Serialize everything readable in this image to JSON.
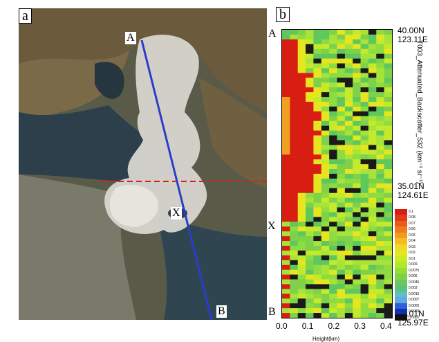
{
  "panel_a": {
    "label": "a",
    "point_a": "A",
    "point_b": "B",
    "point_x": "X"
  },
  "panel_b": {
    "label": "b",
    "side_a": "A",
    "side_x": "X",
    "side_b": "B",
    "top_lat": "40.00N",
    "top_lon": "123.11E",
    "mid_lat": "35.01N",
    "mid_lon": "124.61E",
    "bot_lat": "30.01N",
    "bot_lon": "125.97E",
    "y_title": "T003_Attenuated_Backscatter_532 (km⁻¹ sr⁻¹)",
    "x_title": "Height(km)",
    "x_ticks": [
      "0.0",
      "0.1",
      "0.2",
      "0.3",
      "0.4"
    ],
    "colorbar": [
      "0.1",
      "0.08",
      "0.07",
      "0.06",
      "0.05",
      "0.04",
      "0.03",
      "0.02",
      "0.01",
      "0.009",
      "0.0075",
      "0.006",
      "0.0045",
      "0.003",
      "0.0015",
      "0.0007",
      "0.0005",
      "0.0003",
      "0.0001"
    ],
    "colors": {
      "strong": "#d81d12",
      "orange": "#f0a020",
      "yellow": "#e6e620",
      "green": "#7fd14a",
      "dark": "#1a1a1a"
    }
  }
}
